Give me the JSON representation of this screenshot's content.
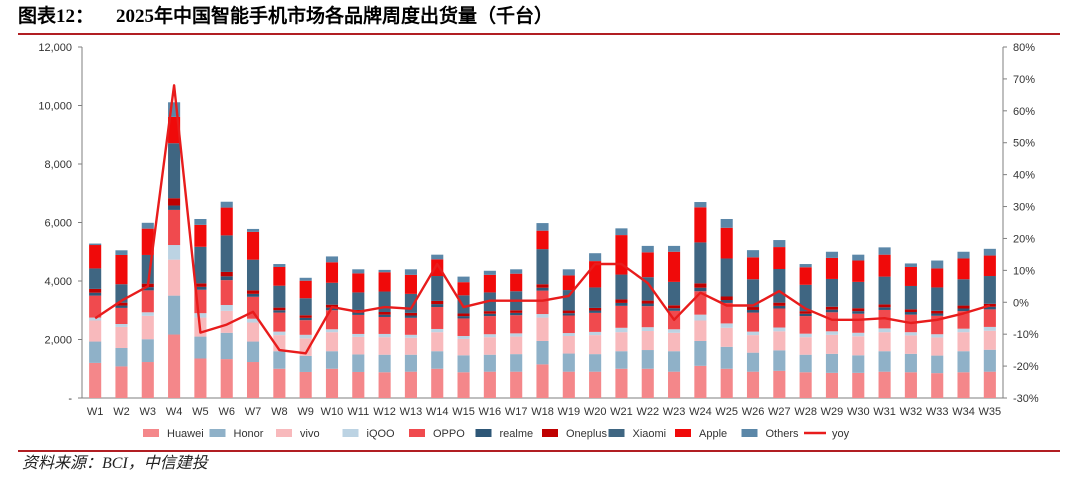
{
  "figure": {
    "label": "图表12：",
    "title": "2025年中国智能手机市场各品牌周度出货量（千台）",
    "source": "资料来源：BCI，中信建投"
  },
  "chart_data": {
    "type": "bar",
    "stacked": true,
    "categories": [
      "W1",
      "W2",
      "W3",
      "W4",
      "W5",
      "W6",
      "W7",
      "W8",
      "W9",
      "W10",
      "W11",
      "W12",
      "W13",
      "W14",
      "W15",
      "W16",
      "W17",
      "W18",
      "W19",
      "W20",
      "W21",
      "W22",
      "W23",
      "W24",
      "W25",
      "W26",
      "W27",
      "W28",
      "W29",
      "W30",
      "W31",
      "W32",
      "W33",
      "W34",
      "W35"
    ],
    "y_left": {
      "min": 0,
      "max": 12000,
      "step": 2000,
      "tick_labels": [
        "-",
        "2,000",
        "4,000",
        "6,000",
        "8,000",
        "10,000",
        "12,000"
      ]
    },
    "y_right": {
      "min": -30,
      "max": 80,
      "step": 10,
      "tick_labels": [
        "-30%",
        "-20%",
        "-10%",
        "0%",
        "10%",
        "20%",
        "30%",
        "40%",
        "50%",
        "60%",
        "70%",
        "80%"
      ]
    },
    "legend_position": "bottom",
    "series": [
      {
        "name": "Huawei",
        "color": "#f4878a",
        "values": [
          1200,
          1080,
          1230,
          2170,
          1350,
          1330,
          1230,
          1000,
          890,
          1000,
          890,
          880,
          900,
          1000,
          880,
          900,
          900,
          1150,
          900,
          900,
          1000,
          1000,
          900,
          1100,
          1000,
          900,
          930,
          880,
          860,
          860,
          900,
          880,
          850,
          880,
          900
        ]
      },
      {
        "name": "Honor",
        "color": "#8fb1c8",
        "values": [
          730,
          630,
          780,
          1330,
          750,
          900,
          700,
          600,
          550,
          600,
          600,
          600,
          580,
          600,
          580,
          580,
          600,
          800,
          620,
          600,
          600,
          640,
          700,
          850,
          750,
          650,
          700,
          600,
          650,
          600,
          700,
          630,
          600,
          720,
          750
        ]
      },
      {
        "name": "vivo",
        "color": "#f8b9bc",
        "values": [
          720,
          720,
          800,
          1230,
          650,
          750,
          650,
          550,
          600,
          650,
          600,
          600,
          580,
          650,
          560,
          600,
          600,
          800,
          600,
          650,
          650,
          650,
          630,
          700,
          650,
          600,
          650,
          600,
          650,
          650,
          650,
          630,
          620,
          650,
          650
        ]
      },
      {
        "name": "iQOO",
        "color": "#bcd3e3",
        "values": [
          100,
          100,
          120,
          500,
          150,
          200,
          130,
          120,
          120,
          100,
          100,
          110,
          100,
          110,
          100,
          100,
          110,
          120,
          100,
          110,
          150,
          130,
          120,
          200,
          150,
          120,
          130,
          120,
          120,
          120,
          130,
          110,
          110,
          120,
          130
        ]
      },
      {
        "name": "OPPO",
        "color": "#f04a4e",
        "values": [
          750,
          550,
          750,
          1200,
          800,
          850,
          750,
          650,
          500,
          650,
          650,
          580,
          580,
          750,
          600,
          620,
          620,
          800,
          600,
          650,
          750,
          720,
          630,
          800,
          700,
          650,
          650,
          600,
          650,
          650,
          630,
          600,
          630,
          600,
          600
        ]
      },
      {
        "name": "realme",
        "color": "#2e5777",
        "values": [
          100,
          80,
          110,
          150,
          100,
          130,
          100,
          80,
          80,
          90,
          80,
          80,
          80,
          100,
          80,
          80,
          80,
          100,
          80,
          80,
          100,
          90,
          90,
          120,
          100,
          90,
          90,
          80,
          90,
          90,
          90,
          90,
          80,
          90,
          90
        ]
      },
      {
        "name": "Oneplus",
        "color": "#c00000",
        "values": [
          130,
          100,
          120,
          250,
          120,
          150,
          120,
          90,
          90,
          100,
          90,
          90,
          90,
          110,
          90,
          90,
          90,
          120,
          90,
          90,
          120,
          100,
          100,
          150,
          120,
          100,
          110,
          90,
          100,
          100,
          100,
          90,
          90,
          100,
          100
        ]
      },
      {
        "name": "Xiaomi",
        "color": "#3f6682",
        "values": [
          700,
          630,
          980,
          1880,
          1250,
          1250,
          1050,
          750,
          580,
          750,
          600,
          700,
          650,
          850,
          620,
          640,
          650,
          1200,
          700,
          700,
          850,
          800,
          800,
          1400,
          1300,
          950,
          1150,
          900,
          950,
          900,
          950,
          800,
          800,
          900,
          950
        ]
      },
      {
        "name": "Apple",
        "color": "#f00a0a",
        "values": [
          800,
          1000,
          900,
          900,
          750,
          950,
          950,
          640,
          600,
          700,
          650,
          660,
          650,
          570,
          450,
          600,
          600,
          630,
          500,
          900,
          1350,
          850,
          1030,
          1200,
          1050,
          750,
          750,
          600,
          720,
          730,
          750,
          650,
          650,
          710,
          700
        ]
      },
      {
        "name": "Others",
        "color": "#5b87a8",
        "values": [
          50,
          160,
          200,
          500,
          200,
          200,
          100,
          100,
          100,
          200,
          140,
          80,
          190,
          160,
          190,
          140,
          150,
          260,
          210,
          270,
          230,
          220,
          200,
          180,
          300,
          245,
          240,
          110,
          210,
          200,
          250,
          120,
          270,
          230,
          230
        ]
      }
    ],
    "line": {
      "name": "yoy",
      "color": "#e81c1c",
      "axis": "right",
      "values": [
        -5,
        0.5,
        5,
        68,
        -9.5,
        -7,
        -3,
        -15,
        -16,
        -1.5,
        -3,
        -1.5,
        -2,
        12,
        -1.5,
        0.5,
        0.5,
        0.5,
        2,
        12,
        12,
        6,
        -5.5,
        3,
        -1,
        -1,
        3.5,
        -2,
        -5.5,
        -5.5,
        -5,
        -6.5,
        -5.5,
        -3.5,
        -1
      ]
    }
  }
}
